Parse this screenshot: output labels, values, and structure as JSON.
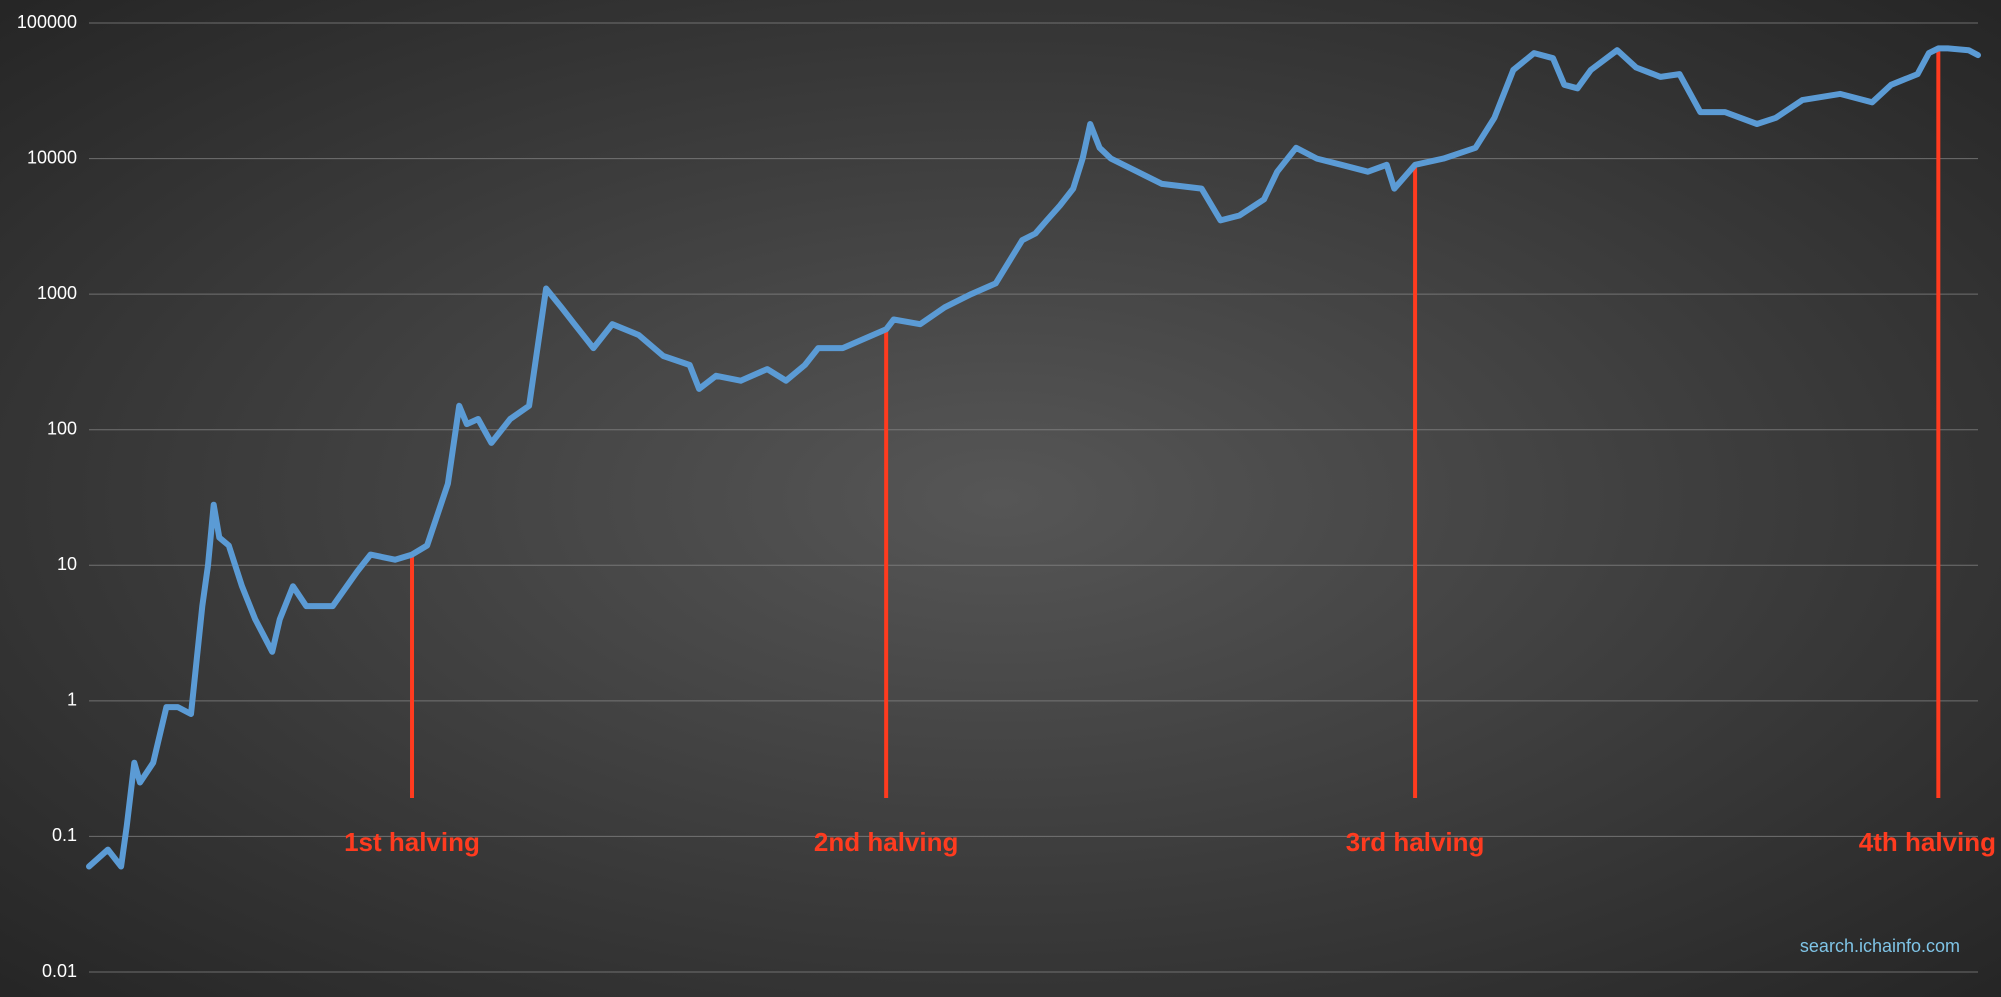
{
  "chart_data": {
    "type": "line",
    "log_scale": true,
    "grid": true,
    "ylim": [
      0.01,
      100000
    ],
    "yticks": [
      0.01,
      0.1,
      1,
      10,
      100,
      1000,
      10000,
      100000
    ],
    "xlim": [
      0,
      100
    ],
    "color": "#5b9bd5",
    "x": [
      0,
      1.0,
      1.7,
      2.0,
      2.4,
      2.7,
      3.4,
      4.1,
      4.7,
      5.4,
      6.0,
      6.3,
      6.6,
      6.9,
      7.4,
      8.1,
      8.8,
      9.7,
      10.1,
      10.8,
      11.5,
      12.9,
      14.2,
      14.9,
      16.2,
      17.1,
      17.9,
      19.0,
      19.6,
      20.0,
      20.6,
      21.3,
      22.3,
      23.3,
      24.2,
      25.0,
      25.7,
      26.7,
      27.7,
      29.1,
      30.4,
      31.8,
      32.3,
      33.2,
      34.5,
      35.9,
      36.9,
      37.9,
      38.6,
      39.9,
      42.2,
      42.6,
      44.0,
      45.3,
      46.7,
      48.0,
      49.4,
      50.1,
      50.7,
      51.4,
      52.1,
      52.6,
      53.0,
      53.5,
      54.1,
      55.5,
      56.8,
      58.9,
      59.9,
      60.9,
      62.2,
      62.9,
      63.9,
      65.0,
      66.3,
      67.7,
      68.7,
      69.1,
      70.2,
      71.7,
      73.4,
      74.4,
      75.4,
      76.5,
      77.5,
      78.1,
      78.8,
      79.5,
      80.9,
      81.9,
      83.2,
      84.2,
      85.3,
      86.6,
      88.3,
      89.3,
      90.7,
      92.7,
      94.4,
      95.4,
      96.8,
      97.4,
      97.9,
      98.4,
      99.5,
      100
    ],
    "values": [
      0.06,
      0.08,
      0.06,
      0.12,
      0.35,
      0.25,
      0.35,
      0.9,
      0.9,
      0.8,
      5,
      10,
      28,
      16,
      14,
      7,
      4,
      2.3,
      4,
      7,
      5,
      5,
      9,
      12,
      11,
      12,
      14,
      40,
      150,
      110,
      120,
      80,
      120,
      150,
      1100,
      800,
      600,
      400,
      600,
      500,
      350,
      300,
      200,
      250,
      230,
      280,
      230,
      300,
      400,
      400,
      550,
      650,
      600,
      800,
      1000,
      1200,
      2500,
      2800,
      3500,
      4500,
      6000,
      10000,
      18000,
      12000,
      10000,
      8000,
      6500,
      6000,
      3500,
      3800,
      5000,
      8000,
      12000,
      10000,
      9000,
      8000,
      9000,
      6000,
      9000,
      10000,
      12000,
      20000,
      45000,
      60000,
      55000,
      35000,
      33000,
      45000,
      63000,
      47000,
      40000,
      42000,
      22000,
      22000,
      18000,
      20000,
      27000,
      30000,
      26000,
      35000,
      42000,
      60000,
      65000,
      65000,
      63000,
      58000
    ],
    "annotations": [
      {
        "text": "1st halving",
        "x": 17.1
      },
      {
        "text": "2nd halving",
        "x": 42.2
      },
      {
        "text": "3rd halving",
        "x": 70.2
      },
      {
        "text": "4th halving",
        "x": 97.9
      }
    ],
    "annotation_color": "#ff3b1f",
    "watermark": "search.ichainfo.com"
  }
}
